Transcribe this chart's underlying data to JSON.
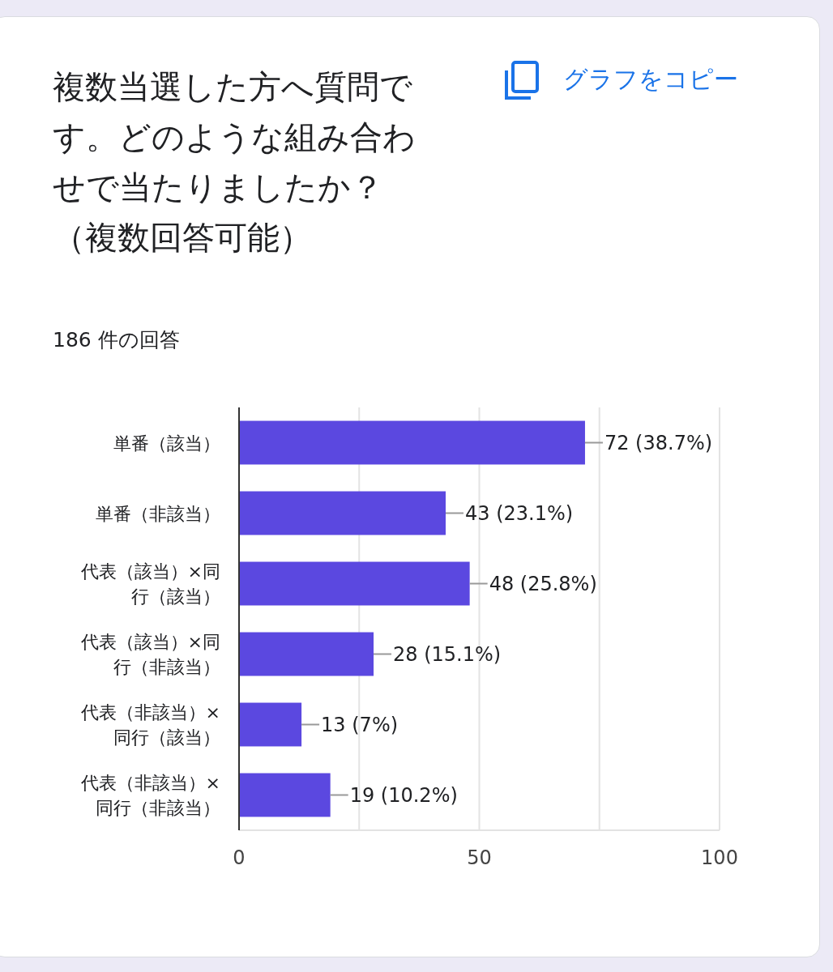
{
  "chart_data": {
    "type": "bar",
    "orientation": "horizontal",
    "title": "複数当選した方へ質問です。どのような組み合わせで当たりましたか？（複数回答可能）",
    "subtitle": "186 件の回答",
    "annotations": [
      "グラフをコピー"
    ],
    "categories": [
      "単番（該当）",
      "単番（非該当）",
      "代表（該当）×同行（該当）",
      "代表（該当）×同行（非該当）",
      "代表（非該当）×同行（該当）",
      "代表（非該当）×同行（非該当）"
    ],
    "values": [
      72,
      43,
      48,
      28,
      13,
      19
    ],
    "value_labels": [
      "72 (38.7%)",
      "43 (23.1%)",
      "48 (25.8%)",
      "28 (15.1%)",
      "13 (7%)",
      "19 (10.2%)"
    ],
    "color": "#5b48e0",
    "xlim": [
      0,
      100
    ],
    "xticks": [
      0,
      {
        "value": 25,
        "label": null
      },
      50,
      {
        "value": 75,
        "label": null
      },
      100
    ],
    "grid": "x"
  }
}
